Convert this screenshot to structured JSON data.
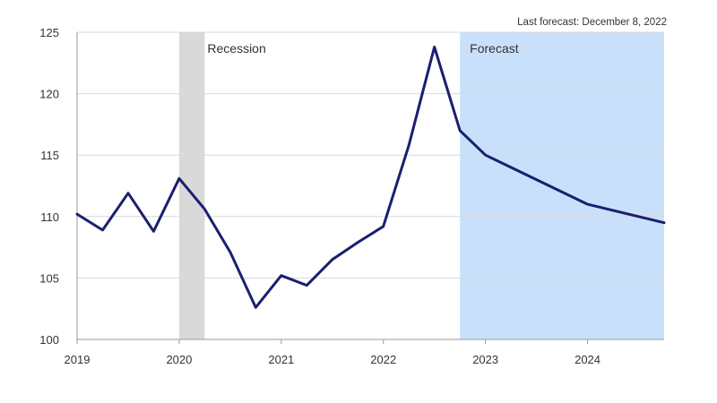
{
  "chart_data": {
    "type": "line",
    "note": "Last forecast: December 8, 2022",
    "ylim": [
      100,
      125
    ],
    "yticks": [
      100,
      105,
      110,
      115,
      120,
      125
    ],
    "xlim": [
      2019,
      2024.75
    ],
    "xticks": [
      {
        "label": "2019",
        "value": 2019
      },
      {
        "label": "2020",
        "value": 2020
      },
      {
        "label": "2021",
        "value": 2021
      },
      {
        "label": "2022",
        "value": 2022
      },
      {
        "label": "2023",
        "value": 2023
      },
      {
        "label": "2024",
        "value": 2024
      }
    ],
    "grid": true,
    "series": [
      {
        "color": "#1a1f6e",
        "x": [
          2019,
          2019.25,
          2019.5,
          2019.75,
          2020,
          2020.25,
          2020.5,
          2020.75,
          2021,
          2021.25,
          2021.5,
          2021.75,
          2022,
          2022.25,
          2022.5,
          2022.75,
          2023,
          2023.25,
          2023.5,
          2023.75,
          2024,
          2024.25,
          2024.5,
          2024.75
        ],
        "y": [
          110.2,
          108.9,
          111.9,
          108.8,
          113.1,
          110.6,
          107.1,
          102.6,
          105.2,
          104.4,
          106.5,
          107.9,
          109.2,
          115.8,
          123.8,
          117.0,
          115.0,
          114.0,
          113.0,
          112.0,
          111.0,
          110.5,
          110.0,
          109.5
        ]
      }
    ],
    "shaded_regions": [
      {
        "label": "Recession",
        "x_start": 2020,
        "x_end": 2020.25,
        "color": "#d9d9d9"
      },
      {
        "label": "Forecast",
        "x_start": 2022.75,
        "x_end": 2024.75,
        "color": "#c9e0fb"
      }
    ]
  }
}
